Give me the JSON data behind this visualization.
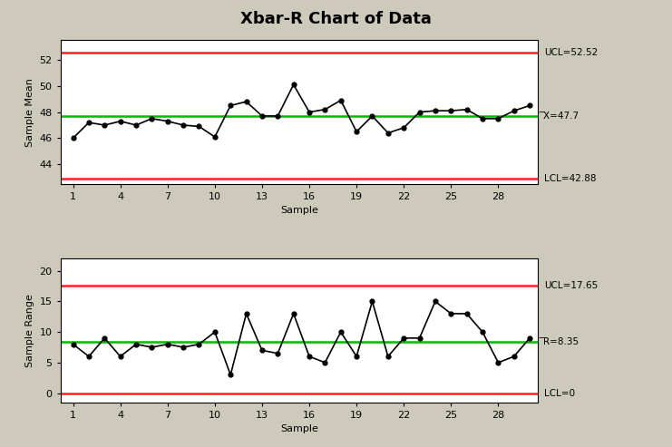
{
  "title": "Xbar-R Chart of Data",
  "background_color": "#cdc9bb",
  "plot_bg_color": "#ffffff",
  "xbar_data": [
    46.0,
    47.2,
    47.0,
    47.3,
    47.0,
    47.5,
    47.3,
    47.0,
    46.9,
    46.1,
    48.5,
    48.8,
    47.7,
    47.7,
    50.1,
    48.0,
    48.2,
    48.9,
    46.5,
    47.7,
    46.4,
    46.8,
    48.0,
    48.1,
    48.1,
    48.2,
    47.5,
    47.5,
    48.1,
    48.5
  ],
  "xbar_ucl": 52.52,
  "xbar_lcl": 42.88,
  "xbar_cl": 47.7,
  "xbar_ylabel": "Sample Mean",
  "xbar_ylim": [
    42.5,
    53.5
  ],
  "xbar_yticks": [
    44,
    46,
    48,
    50,
    52
  ],
  "r_data": [
    8.0,
    6.0,
    9.0,
    6.0,
    8.0,
    7.5,
    8.0,
    7.5,
    8.0,
    10.0,
    3.0,
    13.0,
    7.0,
    6.5,
    13.0,
    6.0,
    5.0,
    10.0,
    6.0,
    15.0,
    6.0,
    9.0,
    9.0,
    15.0,
    13.0,
    13.0,
    10.0,
    5.0,
    6.0,
    9.0
  ],
  "r_ucl": 17.65,
  "r_lcl": 0.0,
  "r_cl": 8.35,
  "r_ylabel": "Sample Range",
  "r_ylim": [
    -1.5,
    22.0
  ],
  "r_yticks": [
    0,
    5,
    10,
    15,
    20
  ],
  "xlabel": "Sample",
  "x_ticks": [
    1,
    4,
    7,
    10,
    13,
    16,
    19,
    22,
    25,
    28
  ],
  "n_samples": 30,
  "ucl_color": "#ff2020",
  "lcl_color": "#ff2020",
  "cl_color": "#00bb00",
  "line_color": "#000000",
  "marker_color": "#000000",
  "ucl_linewidth": 1.8,
  "lcl_linewidth": 1.8,
  "cl_linewidth": 1.8,
  "data_linewidth": 1.2,
  "marker_size": 3.5,
  "title_fontsize": 13,
  "label_fontsize": 8,
  "tick_fontsize": 8,
  "annotation_fontsize": 7.5
}
